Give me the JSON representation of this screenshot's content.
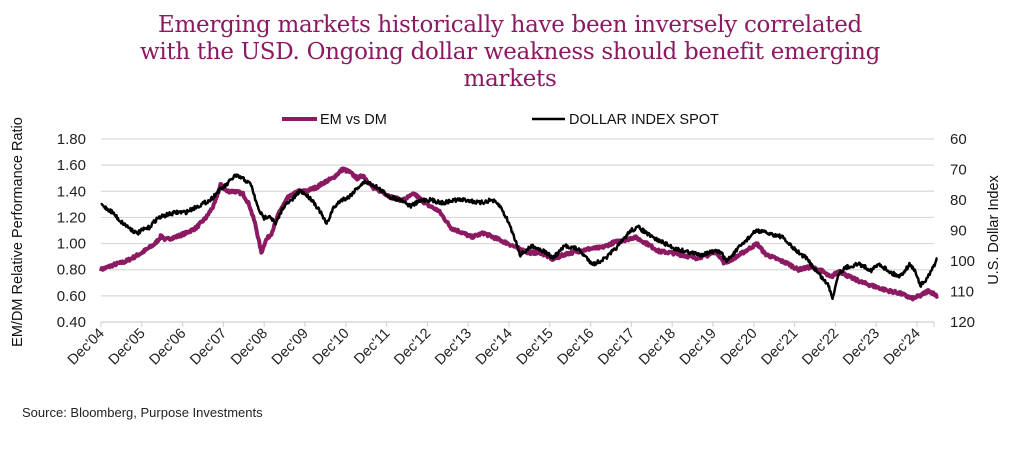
{
  "chart_data": {
    "type": "line",
    "title": "Emerging markets historically have been inversely correlated with the USD. Ongoing dollar weakness should benefit emerging markets",
    "xlabel": "",
    "ylabel": "EM/DM Relative Performance Ratio",
    "y2label": "U.S. Dollar Index",
    "ylim": [
      0.4,
      1.8
    ],
    "y_ticks": [
      "1.80",
      "1.60",
      "1.40",
      "1.20",
      "1.00",
      "0.80",
      "0.60",
      "0.40"
    ],
    "y2lim": [
      60,
      120
    ],
    "y2_inverted": true,
    "y2_ticks": [
      "60",
      "70",
      "80",
      "90",
      "100",
      "110",
      "120"
    ],
    "x_tick_labels": [
      "Dec'04",
      "Dec'05",
      "Dec'06",
      "Dec'07",
      "Dec'08",
      "Dec'09",
      "Dec'10",
      "Dec'11",
      "Dec'12",
      "Dec'13",
      "Dec'14",
      "Dec'15",
      "Dec'16",
      "Dec'17",
      "Dec'18",
      "Dec'19",
      "Dec'20",
      "Dec'21",
      "Dec'22",
      "Dec'23",
      "Dec'24"
    ],
    "xlim": [
      2004.92,
      2025.42
    ],
    "grid": true,
    "legend_position": "top-center",
    "series": [
      {
        "name": "EM vs DM",
        "axis": "left",
        "color": "#8b1a62",
        "x": [
          2004.92,
          2005.25,
          2005.5,
          2005.75,
          2005.92,
          2006.25,
          2006.4,
          2006.5,
          2006.75,
          2007.0,
          2007.25,
          2007.5,
          2007.7,
          2007.85,
          2008.0,
          2008.2,
          2008.4,
          2008.55,
          2008.7,
          2008.85,
          2008.95,
          2009.1,
          2009.3,
          2009.5,
          2009.75,
          2009.92,
          2010.2,
          2010.4,
          2010.6,
          2010.85,
          2011.0,
          2011.2,
          2011.35,
          2011.6,
          2011.8,
          2012.0,
          2012.3,
          2012.6,
          2012.9,
          2013.2,
          2013.5,
          2013.8,
          2014.0,
          2014.3,
          2014.6,
          2014.9,
          2015.1,
          2015.4,
          2015.7,
          2016.0,
          2016.3,
          2016.6,
          2016.9,
          2017.2,
          2017.5,
          2017.8,
          2018.0,
          2018.3,
          2018.6,
          2018.9,
          2019.2,
          2019.5,
          2019.8,
          2020.0,
          2020.2,
          2020.5,
          2020.8,
          2021.0,
          2021.2,
          2021.5,
          2021.8,
          2022.0,
          2022.3,
          2022.6,
          2022.8,
          2023.0,
          2023.3,
          2023.6,
          2023.9,
          2024.2,
          2024.5,
          2024.8,
          2025.0,
          2025.2,
          2025.42
        ],
        "y": [
          0.8,
          0.84,
          0.86,
          0.9,
          0.93,
          1.0,
          1.06,
          1.03,
          1.05,
          1.08,
          1.12,
          1.2,
          1.3,
          1.45,
          1.4,
          1.4,
          1.38,
          1.3,
          1.15,
          0.93,
          1.02,
          1.08,
          1.25,
          1.35,
          1.4,
          1.4,
          1.43,
          1.47,
          1.5,
          1.57,
          1.55,
          1.5,
          1.52,
          1.42,
          1.4,
          1.36,
          1.33,
          1.38,
          1.3,
          1.25,
          1.12,
          1.08,
          1.05,
          1.08,
          1.04,
          1.0,
          0.97,
          0.93,
          0.93,
          0.88,
          0.92,
          0.94,
          0.96,
          0.97,
          1.01,
          1.03,
          1.05,
          1.0,
          0.94,
          0.93,
          0.91,
          0.89,
          0.91,
          0.94,
          0.85,
          0.9,
          0.96,
          1.0,
          0.92,
          0.88,
          0.84,
          0.8,
          0.82,
          0.79,
          0.74,
          0.79,
          0.74,
          0.7,
          0.67,
          0.64,
          0.62,
          0.58,
          0.6,
          0.64,
          0.6
        ]
      },
      {
        "name": "DOLLAR INDEX SPOT",
        "axis": "right",
        "color": "#000000",
        "x": [
          2004.92,
          2005.2,
          2005.4,
          2005.6,
          2005.8,
          2005.92,
          2006.1,
          2006.3,
          2006.5,
          2006.8,
          2007.0,
          2007.3,
          2007.6,
          2007.8,
          2008.0,
          2008.2,
          2008.4,
          2008.6,
          2008.75,
          2008.9,
          2009.05,
          2009.2,
          2009.4,
          2009.6,
          2009.8,
          2009.92,
          2010.1,
          2010.3,
          2010.45,
          2010.6,
          2010.8,
          2011.0,
          2011.2,
          2011.4,
          2011.6,
          2011.8,
          2012.0,
          2012.3,
          2012.5,
          2012.8,
          2013.0,
          2013.3,
          2013.6,
          2013.9,
          2014.2,
          2014.5,
          2014.7,
          2014.9,
          2015.1,
          2015.2,
          2015.5,
          2015.8,
          2016.0,
          2016.3,
          2016.6,
          2016.9,
          2017.0,
          2017.3,
          2017.6,
          2017.9,
          2018.1,
          2018.4,
          2018.7,
          2019.0,
          2019.3,
          2019.6,
          2019.9,
          2020.1,
          2020.25,
          2020.4,
          2020.6,
          2020.9,
          2021.0,
          2021.3,
          2021.6,
          2021.9,
          2022.2,
          2022.5,
          2022.75,
          2022.85,
          2023.0,
          2023.2,
          2023.5,
          2023.8,
          2024.0,
          2024.3,
          2024.5,
          2024.75,
          2024.9,
          2025.0,
          2025.1,
          2025.25,
          2025.42
        ],
        "y": [
          81.5,
          84,
          87,
          89,
          91,
          90,
          89,
          86,
          85,
          84,
          84,
          82,
          80,
          77,
          75,
          72,
          73,
          75,
          82,
          86,
          85,
          88,
          82,
          80,
          77,
          78,
          80,
          84,
          88,
          83,
          80,
          79,
          76,
          74,
          75,
          77,
          79,
          80,
          82,
          80,
          80,
          81,
          80,
          80,
          81,
          80,
          82,
          87,
          94,
          98,
          95,
          97,
          99,
          95,
          96,
          100,
          101,
          99,
          95,
          90,
          89,
          92,
          94,
          96,
          97,
          98,
          97,
          97,
          100,
          98,
          95,
          91,
          90,
          91,
          92,
          96,
          99,
          104,
          108,
          112,
          104,
          102,
          101,
          103,
          101,
          104,
          105,
          101,
          104,
          108,
          107,
          104,
          99
        ]
      }
    ]
  },
  "legend": {
    "items": [
      {
        "label": "EM vs DM",
        "color": "#8b1a62"
      },
      {
        "label": "DOLLAR INDEX SPOT",
        "color": "#000000"
      }
    ]
  },
  "source": "Source: Bloomberg, Purpose Investments"
}
